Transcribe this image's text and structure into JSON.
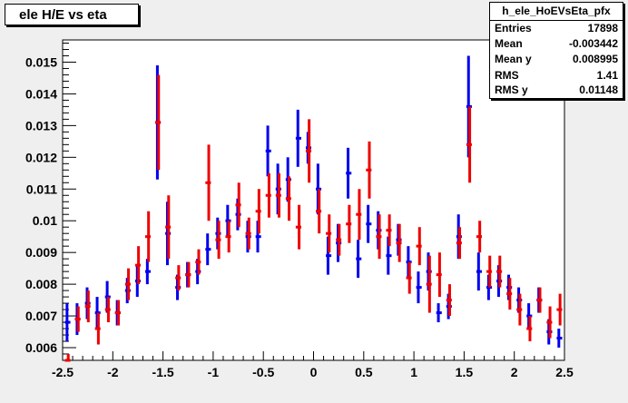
{
  "title": "ele H/E vs eta",
  "stats": {
    "name": "h_ele_HoEVsEta_pfx",
    "rows": [
      {
        "key": "Entries",
        "value": "17898"
      },
      {
        "key": "Mean",
        "value": "-0.003442"
      },
      {
        "key": "Mean y",
        "value": "0.008995"
      },
      {
        "key": "RMS",
        "value": "1.41"
      },
      {
        "key": "RMS y",
        "value": "0.01148"
      }
    ]
  },
  "colors": {
    "blue": "#0000ee",
    "red": "#ee0000",
    "frame": "#000000"
  },
  "chart_data": {
    "type": "scatter",
    "title": "ele H/E vs eta",
    "xlabel": "",
    "ylabel": "",
    "xlim": [
      -2.5,
      2.5
    ],
    "ylim": [
      0.0056,
      0.0157
    ],
    "grid": false,
    "xticks": [
      -2.5,
      -2,
      -1.5,
      -1,
      -0.5,
      0,
      0.5,
      1,
      1.5,
      2,
      2.5
    ],
    "xtick_labels": [
      "-2.5",
      "-2",
      "-1.5",
      "-1",
      "-0.5",
      "0",
      "0.5",
      "1",
      "1.5",
      "2",
      "2.5"
    ],
    "yticks": [
      0.006,
      0.007,
      0.008,
      0.009,
      0.01,
      0.011,
      0.012,
      0.013,
      0.014,
      0.015
    ],
    "ytick_labels": [
      "0.006",
      "0.007",
      "0.008",
      "0.009",
      "0.01",
      "0.011",
      "0.012",
      "0.013",
      "0.014",
      "0.015"
    ],
    "series": [
      {
        "color": "#0000ee",
        "x": [
          -2.45,
          -2.35,
          -2.25,
          -2.15,
          -2.05,
          -1.95,
          -1.85,
          -1.75,
          -1.65,
          -1.55,
          -1.45,
          -1.35,
          -1.25,
          -1.15,
          -1.05,
          -0.95,
          -0.85,
          -0.75,
          -0.65,
          -0.55,
          -0.45,
          -0.35,
          -0.25,
          -0.15,
          -0.05,
          0.05,
          0.15,
          0.25,
          0.35,
          0.45,
          0.55,
          0.65,
          0.75,
          0.85,
          0.95,
          1.05,
          1.15,
          1.25,
          1.35,
          1.45,
          1.55,
          1.65,
          1.75,
          1.85,
          1.95,
          2.05,
          2.15,
          2.25,
          2.35,
          2.45
        ],
        "y": [
          0.0068,
          0.0069,
          0.0074,
          0.0071,
          0.0076,
          0.0071,
          0.0078,
          0.0081,
          0.0084,
          0.0131,
          0.0096,
          0.0079,
          0.0083,
          0.0084,
          0.0091,
          0.0096,
          0.01,
          0.0102,
          0.0095,
          0.0095,
          0.0122,
          0.011,
          0.0113,
          0.0126,
          0.0123,
          0.011,
          0.0089,
          0.0093,
          0.0115,
          0.0088,
          0.0099,
          0.0097,
          0.0089,
          0.0094,
          0.0087,
          0.0079,
          0.0084,
          0.0071,
          0.0073,
          0.0095,
          0.0136,
          0.0084,
          0.0079,
          0.0081,
          0.0079,
          0.0075,
          0.007,
          0.0075,
          0.0065,
          0.0063
        ],
        "err": [
          0.0006,
          0.0005,
          0.0005,
          0.0005,
          0.0005,
          0.0004,
          0.0004,
          0.0005,
          0.0004,
          0.0018,
          0.001,
          0.0004,
          0.0004,
          0.0004,
          0.0005,
          0.0005,
          0.0005,
          0.0005,
          0.0005,
          0.0005,
          0.0008,
          0.0008,
          0.0007,
          0.0009,
          0.0005,
          0.0008,
          0.0006,
          0.0006,
          0.0008,
          0.0006,
          0.0006,
          0.0006,
          0.0006,
          0.0005,
          0.0005,
          0.0005,
          0.0006,
          0.0003,
          0.0004,
          0.0007,
          0.0016,
          0.0006,
          0.0004,
          0.0005,
          0.0004,
          0.0004,
          0.0004,
          0.0004,
          0.0004,
          0.0003
        ]
      },
      {
        "color": "#ee0000",
        "x": [
          -2.45,
          -2.35,
          -2.25,
          -2.15,
          -2.05,
          -1.95,
          -1.85,
          -1.75,
          -1.65,
          -1.55,
          -1.45,
          -1.35,
          -1.25,
          -1.15,
          -1.05,
          -0.95,
          -0.85,
          -0.75,
          -0.65,
          -0.55,
          -0.45,
          -0.35,
          -0.25,
          -0.15,
          -0.05,
          0.05,
          0.15,
          0.25,
          0.35,
          0.45,
          0.55,
          0.65,
          0.75,
          0.85,
          0.95,
          1.05,
          1.15,
          1.25,
          1.35,
          1.45,
          1.55,
          1.65,
          1.75,
          1.85,
          1.95,
          2.05,
          2.15,
          2.25,
          2.35,
          2.45
        ],
        "y": [
          0.0056,
          0.0069,
          0.0073,
          0.0066,
          0.0072,
          0.0071,
          0.008,
          0.0086,
          0.0095,
          0.0131,
          0.0098,
          0.0082,
          0.0083,
          0.0087,
          0.0112,
          0.0094,
          0.0095,
          0.0105,
          0.0096,
          0.0103,
          0.0108,
          0.0108,
          0.0107,
          0.0098,
          0.0122,
          0.0103,
          0.0096,
          0.0094,
          0.0099,
          0.0102,
          0.0116,
          0.0095,
          0.0097,
          0.0093,
          0.0082,
          0.0092,
          0.008,
          0.0083,
          0.0075,
          0.0093,
          0.0124,
          0.0095,
          0.0084,
          0.0084,
          0.0077,
          0.0072,
          0.0066,
          0.0075,
          0.0068,
          0.0072
        ],
        "err": [
          0.0002,
          0.0004,
          0.0005,
          0.0005,
          0.0004,
          0.0004,
          0.0005,
          0.0006,
          0.0008,
          0.0015,
          0.001,
          0.0004,
          0.0004,
          0.0004,
          0.0012,
          0.0006,
          0.0005,
          0.0007,
          0.0005,
          0.0007,
          0.0007,
          0.0007,
          0.0007,
          0.0007,
          0.001,
          0.0007,
          0.0006,
          0.0005,
          0.0006,
          0.0008,
          0.0009,
          0.0007,
          0.0005,
          0.0006,
          0.0005,
          0.0006,
          0.0009,
          0.0007,
          0.0005,
          0.0005,
          0.0012,
          0.0005,
          0.0005,
          0.0005,
          0.0005,
          0.0005,
          0.0004,
          0.0004,
          0.0005,
          0.0005
        ]
      }
    ]
  }
}
